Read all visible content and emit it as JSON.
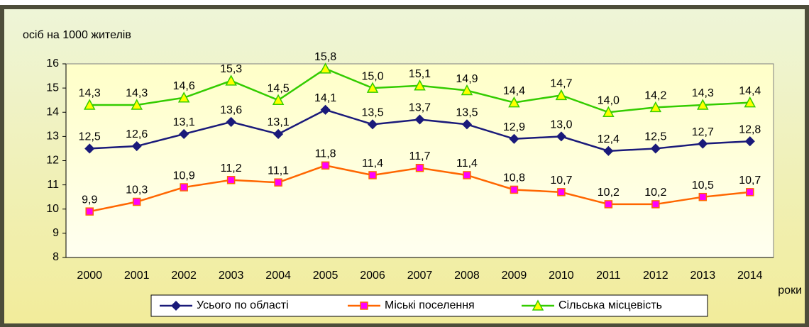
{
  "chart_data": {
    "type": "line",
    "y_label": "осіб на 1000 жителів",
    "x_label": "роки",
    "categories": [
      "2000",
      "2001",
      "2002",
      "2003",
      "2004",
      "2005",
      "2006",
      "2007",
      "2008",
      "2009",
      "2010",
      "2011",
      "2012",
      "2013",
      "2014"
    ],
    "ylim": [
      8,
      16
    ],
    "yticks": [
      8,
      9,
      10,
      11,
      12,
      13,
      14,
      15,
      16
    ],
    "legend": "bottom",
    "series": [
      {
        "name": "Усього по області",
        "color": "#1a1a7a",
        "marker": "diamond",
        "marker_color": "#1a1a7a",
        "values": [
          12.5,
          12.6,
          13.1,
          13.6,
          13.1,
          14.1,
          13.5,
          13.7,
          13.5,
          12.9,
          13.0,
          12.4,
          12.5,
          12.7,
          12.8
        ],
        "value_labels": [
          "12,5",
          "12,6",
          "13,1",
          "13,6",
          "13,1",
          "14,1",
          "13,5",
          "13,7",
          "13,5",
          "12,9",
          "13,0",
          "12,4",
          "12,5",
          "12,7",
          "12,8"
        ]
      },
      {
        "name": "Міські поселення",
        "color": "#ff6600",
        "marker": "square",
        "marker_color": "#ff00ff",
        "values": [
          9.9,
          10.3,
          10.9,
          11.2,
          11.1,
          11.8,
          11.4,
          11.7,
          11.4,
          10.8,
          10.7,
          10.2,
          10.2,
          10.5,
          10.7
        ],
        "value_labels": [
          "9,9",
          "10,3",
          "10,9",
          "11,2",
          "11,1",
          "11,8",
          "11,4",
          "11,7",
          "11,4",
          "10,8",
          "10,7",
          "10,2",
          "10,2",
          "10,5",
          "10,7"
        ]
      },
      {
        "name": "Сільська місцевість",
        "color": "#33cc00",
        "marker": "triangle",
        "marker_color": "#ffff00",
        "values": [
          14.3,
          14.3,
          14.6,
          15.3,
          14.5,
          15.8,
          15.0,
          15.1,
          14.9,
          14.4,
          14.7,
          14.0,
          14.2,
          14.3,
          14.4
        ],
        "value_labels": [
          "14,3",
          "14,3",
          "14,6",
          "15,3",
          "14,5",
          "15,8",
          "15,0",
          "15,1",
          "14,9",
          "14,4",
          "14,7",
          "14,0",
          "14,2",
          "14,3",
          "14,4"
        ]
      }
    ]
  }
}
